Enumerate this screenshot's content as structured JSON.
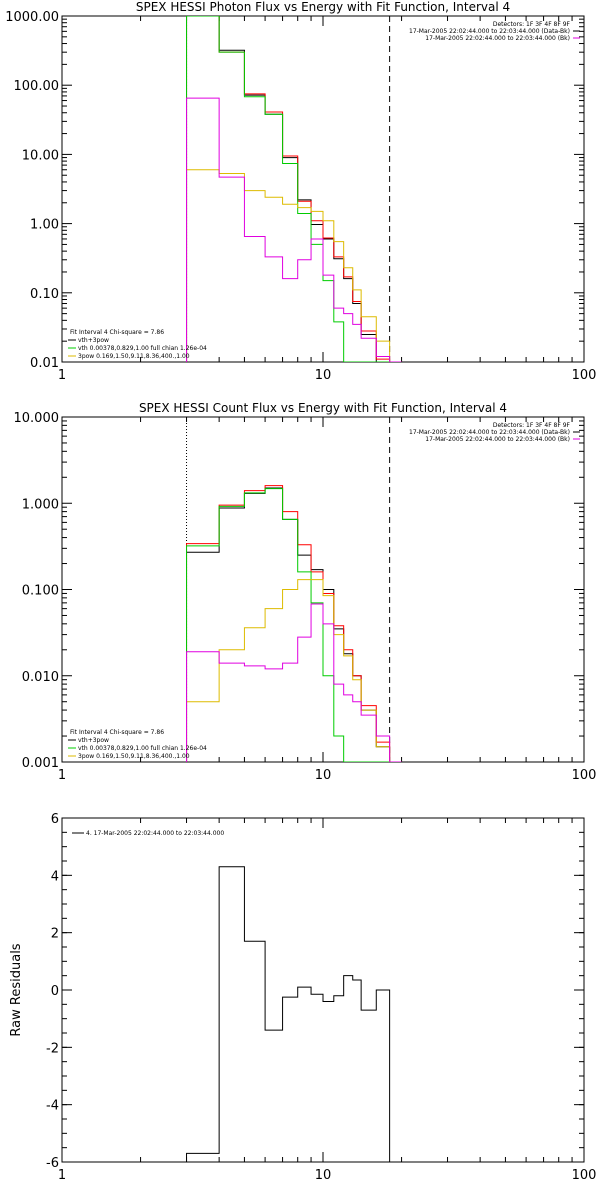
{
  "colors": {
    "black": "#000000",
    "red": "#ff0000",
    "green": "#00cc00",
    "magenta": "#e000e0",
    "yellow": "#ddbb00"
  },
  "chart_data": [
    {
      "type": "line",
      "title": "SPEX HESSI Photon Flux vs Energy with Fit Function, Interval 4",
      "xscale": "log",
      "yscale": "log",
      "xlim": [
        1,
        100
      ],
      "ylim": [
        0.01,
        1000
      ],
      "xticks": [
        1,
        10,
        100
      ],
      "xtick_labels": [
        "1",
        "10",
        "100"
      ],
      "yticks": [
        0.01,
        0.1,
        1,
        10,
        100,
        1000
      ],
      "ytick_labels": [
        "0.01",
        "0.10",
        "1.00",
        "10.00",
        "100.00",
        "1000.00"
      ],
      "vlines": {
        "dotted": 3,
        "dashed": 18
      },
      "info_top_right": [
        "Detectors: 1F 3F 4F 8F 9F",
        "17-Mar-2005 22:02:44.000 to 22:03:44.000 (Data-Bk)",
        "17-Mar-2005 22:02:44.000 to 22:03:44.000 (Bk)"
      ],
      "info_top_right_colors": [
        "#000000",
        "#000000",
        "#e000e0"
      ],
      "legend": [
        "Fit Interval  4    Chi-square = 7.86",
        "vth+3pow",
        "vth 0.00378,0.829,1.00  full chian 1.26e-04",
        "3pow 0.169,1.50,9.11,8.36,400.,1.00"
      ],
      "legend_colors": [
        "#000000",
        "#000000",
        "#00cc00",
        "#ddbb00"
      ],
      "edges": [
        3,
        4,
        5,
        6,
        7,
        8,
        9,
        10,
        11,
        12,
        13,
        14,
        16,
        18,
        20
      ],
      "series": [
        {
          "name": "Data-Bk",
          "color": "#000000",
          "values": [
            1000,
            320,
            72,
            38,
            9,
            2.2,
            0.97,
            0.6,
            0.31,
            0.16,
            0.07,
            0.025,
            0.01,
            0.01
          ]
        },
        {
          "name": "vth+3pow",
          "color": "#ff0000",
          "values": [
            1000,
            300,
            75,
            41,
            9.5,
            2.1,
            1.1,
            0.62,
            0.33,
            0.17,
            0.075,
            0.028,
            0.011,
            0.01
          ]
        },
        {
          "name": "vth",
          "color": "#00cc00",
          "values": [
            1000,
            300,
            68,
            38,
            7.4,
            1.4,
            0.5,
            0.15,
            0.038,
            0.01,
            0.01,
            0.01,
            0.01,
            0.01
          ]
        },
        {
          "name": "3pow",
          "color": "#ddbb00",
          "values": [
            6,
            5.3,
            3,
            2.4,
            1.9,
            1.7,
            1.5,
            1.1,
            0.55,
            0.23,
            0.11,
            0.045,
            0.02,
            0.01
          ]
        },
        {
          "name": "Bk",
          "color": "#e000e0",
          "values": [
            65,
            4.7,
            0.65,
            0.33,
            0.16,
            0.3,
            0.6,
            0.18,
            0.06,
            0.05,
            0.035,
            0.022,
            0.012,
            0.01
          ]
        }
      ]
    },
    {
      "type": "line",
      "title": "SPEX HESSI Count Flux vs Energy with Fit Function, Interval 4",
      "xscale": "log",
      "yscale": "log",
      "xlim": [
        1,
        100
      ],
      "ylim": [
        0.001,
        10
      ],
      "xticks": [
        1,
        10,
        100
      ],
      "xtick_labels": [
        "1",
        "10",
        "100"
      ],
      "yticks": [
        0.001,
        0.01,
        0.1,
        1,
        10
      ],
      "ytick_labels": [
        "0.001",
        "0.010",
        "0.100",
        "1.000",
        "10.000"
      ],
      "vlines": {
        "dotted": 3,
        "dashed": 18
      },
      "info_top_right": [
        "Detectors: 1F 3F 4F 8F 9F",
        "17-Mar-2005 22:02:44.000 to 22:03:44.000 (Data-Bk)",
        "17-Mar-2005 22:02:44.000 to 22:03:44.000 (Bk)"
      ],
      "info_top_right_colors": [
        "#000000",
        "#000000",
        "#e000e0"
      ],
      "legend": [
        "Fit Interval  4    Chi-square = 7.86",
        "vth+3pow",
        "vth 0.00378,0.829,1.00  full chian 1.26e-04",
        "3pow 0.169,1.50,9.11,8.36,400.,1.00"
      ],
      "legend_colors": [
        "#000000",
        "#000000",
        "#00cc00",
        "#ddbb00"
      ],
      "edges": [
        3,
        4,
        5,
        6,
        7,
        8,
        9,
        10,
        11,
        12,
        13,
        14,
        16,
        18,
        20
      ],
      "series": [
        {
          "name": "Data-Bk",
          "color": "#000000",
          "values": [
            0.27,
            0.88,
            1.3,
            1.5,
            0.65,
            0.25,
            0.17,
            0.1,
            0.035,
            0.018,
            0.01,
            0.004,
            0.0015,
            0.001
          ]
        },
        {
          "name": "vth+3pow",
          "color": "#ff0000",
          "values": [
            0.34,
            0.95,
            1.4,
            1.6,
            0.8,
            0.33,
            0.16,
            0.09,
            0.038,
            0.02,
            0.01,
            0.0045,
            0.0017,
            0.001
          ]
        },
        {
          "name": "vth",
          "color": "#00cc00",
          "values": [
            0.32,
            0.92,
            1.32,
            1.48,
            0.65,
            0.16,
            0.07,
            0.01,
            0.002,
            0.001,
            0.001,
            0.001,
            0.001,
            0.001
          ]
        },
        {
          "name": "3pow",
          "color": "#ddbb00",
          "values": [
            0.005,
            0.02,
            0.036,
            0.06,
            0.1,
            0.13,
            0.13,
            0.085,
            0.03,
            0.017,
            0.009,
            0.004,
            0.0015,
            0.001
          ]
        },
        {
          "name": "Bk",
          "color": "#e000e0",
          "values": [
            0.019,
            0.014,
            0.013,
            0.012,
            0.014,
            0.028,
            0.068,
            0.04,
            0.008,
            0.006,
            0.005,
            0.0035,
            0.002,
            0.001
          ]
        }
      ]
    },
    {
      "type": "line",
      "xscale": "log",
      "xlim": [
        1,
        100
      ],
      "ylim": [
        -6,
        6
      ],
      "xticks": [
        1,
        10,
        100
      ],
      "xtick_labels": [
        "1",
        "10",
        "100"
      ],
      "yticks": [
        -6,
        -4,
        -2,
        0,
        2,
        4,
        6
      ],
      "ytick_labels": [
        "-6",
        "-4",
        "-2",
        "0",
        "2",
        "4",
        "6"
      ],
      "ylabel": "Raw Residuals",
      "legend": [
        "4. 17-Mar-2005 22:02:44.000 to 22:03:44.000"
      ],
      "edges": [
        3,
        4,
        5,
        6,
        7,
        8,
        9,
        10,
        11,
        12,
        13,
        14,
        16,
        18
      ],
      "series": [
        {
          "color": "#000000",
          "values": [
            -5.7,
            4.3,
            1.7,
            -1.4,
            -0.25,
            0.1,
            -0.15,
            -0.4,
            -0.2,
            0.5,
            0.35,
            -0.7,
            0
          ]
        }
      ]
    }
  ]
}
